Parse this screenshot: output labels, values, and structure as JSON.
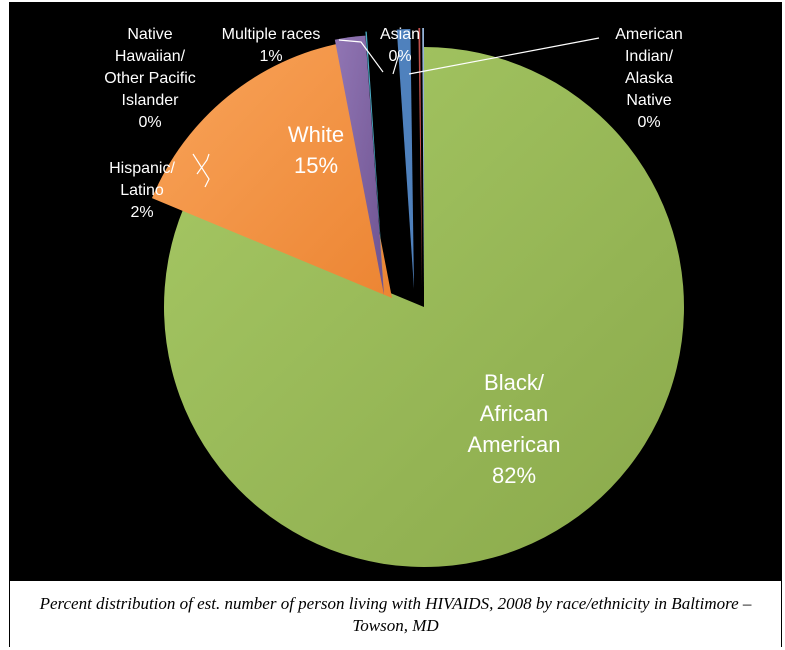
{
  "chart_data": {
    "type": "pie",
    "title": "",
    "legend": "none",
    "categories": [
      "Black/ African American",
      "White",
      "Hispanic/ Latino",
      "Native Hawaiian/ Other Pacific Islander",
      "Multiple races",
      "Asian",
      "American Indian/ Alaska Native"
    ],
    "series": [
      {
        "values": [
          82,
          15,
          2,
          0,
          1,
          0,
          0
        ]
      }
    ],
    "slices": [
      {
        "label_lines": [
          "Black/",
          "African",
          "American"
        ],
        "percent_label": "82%",
        "value": 82,
        "color": "#9bbb59",
        "exploded": false
      },
      {
        "label_lines": [
          "White"
        ],
        "percent_label": "15%",
        "value": 15,
        "color": "#f79646",
        "exploded": true
      },
      {
        "label_lines": [
          "Hispanic/",
          "Latino"
        ],
        "percent_label": "2%",
        "value": 2,
        "color": "#8064a2",
        "exploded": true
      },
      {
        "label_lines": [
          "Native",
          "Hawaiian/",
          "Other Pacific",
          "Islander"
        ],
        "percent_label": "0%",
        "value": 0,
        "color": "#4bacc6",
        "exploded": true
      },
      {
        "label_lines": [
          "Multiple races"
        ],
        "percent_label": "1%",
        "value": 1,
        "color": "#4f81bd",
        "exploded": true
      },
      {
        "label_lines": [
          "Asian"
        ],
        "percent_label": "0%",
        "value": 0,
        "color": "#c0504d",
        "exploded": true
      },
      {
        "label_lines": [
          "American",
          "Indian/",
          "Alaska",
          "Native"
        ],
        "percent_label": "0%",
        "value": 0,
        "color": "#95b3d7",
        "exploded": true
      }
    ],
    "background": "#000000",
    "label_color": "#ffffff"
  },
  "caption": "Percent distribution of est. number of person living with HIVAIDS, 2008 by race/ethnicity in Baltimore – Towson, MD"
}
